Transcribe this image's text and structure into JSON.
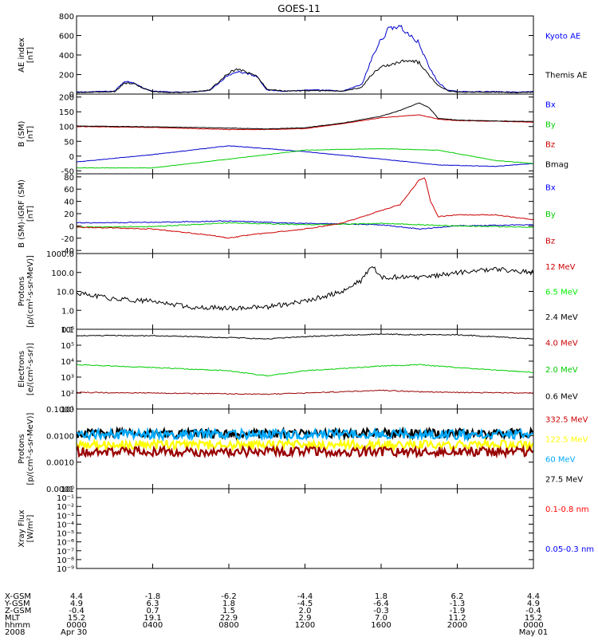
{
  "title": "GOES-11",
  "chart_data": [
    {
      "type": "line",
      "ylabel": [
        "AE index",
        "[nT]"
      ],
      "yticks": [
        "0",
        "200",
        "400",
        "600",
        "800"
      ],
      "tick_values": [
        0,
        200,
        400,
        600,
        800
      ],
      "ylim": [
        0,
        800
      ],
      "legend": [
        {
          "label": "Kyoto AE",
          "color": "#0000ff"
        },
        {
          "label": "Themis AE",
          "color": "#000000"
        }
      ],
      "series": [
        {
          "name": "Kyoto AE",
          "color": "#0000cc",
          "x": [
            0,
            1,
            2,
            2.5,
            3,
            3.5,
            4,
            5,
            6,
            7,
            8,
            8.5,
            9,
            9.5,
            10,
            11,
            12,
            13,
            14,
            15,
            15.5,
            16,
            16.5,
            17,
            17.5,
            18,
            18.5,
            19,
            19.5,
            20,
            21,
            22,
            23,
            24
          ],
          "y": [
            20,
            25,
            30,
            130,
            120,
            60,
            30,
            20,
            20,
            40,
            200,
            230,
            210,
            180,
            40,
            30,
            40,
            40,
            30,
            100,
            360,
            560,
            690,
            690,
            600,
            520,
            280,
            120,
            40,
            25,
            25,
            25,
            20,
            25
          ]
        },
        {
          "name": "Themis AE",
          "color": "#000000",
          "x": [
            0,
            1,
            2,
            2.5,
            3,
            3.5,
            4,
            5,
            6,
            7,
            8,
            8.5,
            9,
            9.5,
            10,
            11,
            12,
            13,
            14,
            15,
            15.5,
            16,
            16.5,
            17,
            17.5,
            18,
            18.5,
            19,
            19.5,
            20,
            21,
            22,
            23,
            24
          ],
          "y": [
            15,
            20,
            25,
            110,
            110,
            60,
            25,
            15,
            20,
            40,
            220,
            260,
            220,
            180,
            50,
            30,
            35,
            35,
            30,
            70,
            200,
            280,
            300,
            330,
            350,
            320,
            200,
            90,
            35,
            20,
            20,
            20,
            15,
            20
          ]
        }
      ]
    },
    {
      "type": "line",
      "ylabel": [
        "B (SM)",
        "[nT]"
      ],
      "yticks": [
        "-50",
        "0",
        "50",
        "100",
        "150",
        "200"
      ],
      "tick_values": [
        -50,
        0,
        50,
        100,
        150,
        200
      ],
      "ylim": [
        -60,
        210
      ],
      "legend": [
        {
          "label": "Bx",
          "color": "#0000ff"
        },
        {
          "label": "By",
          "color": "#00cc00"
        },
        {
          "label": "Bz",
          "color": "#cc0000"
        },
        {
          "label": "Bmag",
          "color": "#000000"
        }
      ],
      "series": [
        {
          "name": "Bx",
          "color": "#0000cc",
          "x": [
            0,
            4,
            8,
            12,
            16,
            19,
            22,
            24
          ],
          "y": [
            -20,
            5,
            35,
            15,
            -10,
            -30,
            -35,
            -25
          ]
        },
        {
          "name": "By",
          "color": "#00cc00",
          "x": [
            0,
            4,
            8,
            12,
            16,
            19,
            22,
            24
          ],
          "y": [
            -40,
            -40,
            -10,
            20,
            25,
            20,
            -15,
            -25
          ]
        },
        {
          "name": "Bz",
          "color": "#cc0000",
          "x": [
            0,
            4,
            8,
            10,
            12,
            14,
            16,
            18,
            19,
            20,
            22,
            24
          ],
          "y": [
            100,
            97,
            90,
            90,
            93,
            110,
            130,
            140,
            125,
            120,
            118,
            115
          ]
        },
        {
          "name": "Bmag",
          "color": "#000000",
          "x": [
            0,
            4,
            8,
            10,
            12,
            14,
            16,
            17,
            18,
            18.5,
            19,
            20,
            22,
            24
          ],
          "y": [
            102,
            99,
            95,
            92,
            96,
            112,
            135,
            155,
            180,
            165,
            128,
            122,
            119,
            117
          ]
        }
      ]
    },
    {
      "type": "line",
      "ylabel": [
        "B (SM)-IGRF (SM)",
        "[nT]"
      ],
      "yticks": [
        "-40",
        "-20",
        "0",
        "20",
        "40",
        "60",
        "80"
      ],
      "tick_values": [
        -40,
        -20,
        0,
        20,
        40,
        60,
        80
      ],
      "ylim": [
        -45,
        85
      ],
      "legend": [
        {
          "label": "Bx",
          "color": "#0000ff"
        },
        {
          "label": "By",
          "color": "#00cc00"
        },
        {
          "label": "Bz",
          "color": "#cc0000"
        }
      ],
      "series": [
        {
          "name": "Bx",
          "color": "#0000cc",
          "x": [
            0,
            4,
            8,
            12,
            16,
            18,
            20,
            24
          ],
          "y": [
            5,
            6,
            8,
            4,
            2,
            -5,
            0,
            2
          ]
        },
        {
          "name": "By",
          "color": "#00cc00",
          "x": [
            0,
            4,
            8,
            12,
            16,
            18,
            20,
            24
          ],
          "y": [
            -2,
            -1,
            5,
            2,
            4,
            2,
            0,
            -2
          ]
        },
        {
          "name": "Bz",
          "color": "#cc0000",
          "x": [
            0,
            4,
            7,
            8,
            9,
            12,
            14,
            15,
            16,
            17,
            17.5,
            18,
            18.3,
            18.6,
            19,
            20,
            22,
            24
          ],
          "y": [
            -2,
            -5,
            -15,
            -20,
            -15,
            -5,
            5,
            15,
            25,
            35,
            55,
            75,
            78,
            40,
            15,
            18,
            18,
            10
          ]
        }
      ]
    },
    {
      "type": "line",
      "ylog": true,
      "ylabel": [
        "Protons",
        "[p/(cm²-s-sr-MeV)]"
      ],
      "yticks": [
        "0.1",
        "1.0",
        "10.0",
        "100.0",
        "1000.0"
      ],
      "tick_values": [
        0.1,
        1,
        10,
        100,
        1000
      ],
      "ylim": [
        0.1,
        1000
      ],
      "legend": [
        {
          "label": "12 MeV",
          "color": "#cc0000"
        },
        {
          "label": "6.5 MeV",
          "color": "#00ee00"
        },
        {
          "label": "2.4 MeV",
          "color": "#000000"
        }
      ],
      "series": [
        {
          "name": "2.4 MeV",
          "color": "#000000",
          "x": [
            0,
            2,
            4,
            6,
            8,
            10,
            12,
            14,
            15,
            15.5,
            16,
            17,
            18,
            20,
            22,
            24
          ],
          "y": [
            8,
            4,
            3,
            1.5,
            1.3,
            1.5,
            3,
            10,
            40,
            250,
            50,
            60,
            50,
            100,
            150,
            100
          ]
        }
      ]
    },
    {
      "type": "line",
      "ylog": true,
      "ylabel": [
        "Electrons",
        "[e/(cm²-s-sr)]"
      ],
      "yticks": [
        "10¹",
        "10²",
        "10³",
        "10⁴",
        "10⁵",
        "10⁶"
      ],
      "tick_values": [
        10,
        100,
        1000,
        10000,
        100000,
        1000000
      ],
      "ylim": [
        10,
        1000000
      ],
      "legend": [
        {
          "label": "4.0 MeV",
          "color": "#cc0000"
        },
        {
          "label": "2.0 MeV",
          "color": "#00cc00"
        },
        {
          "label": "0.6 MeV",
          "color": "#000000"
        }
      ],
      "series": [
        {
          "name": "0.6 MeV",
          "color": "#000000",
          "x": [
            0,
            4,
            8,
            10,
            12,
            16,
            18,
            20,
            24
          ],
          "y": [
            400000,
            400000,
            300000,
            250000,
            350000,
            500000,
            450000,
            450000,
            250000
          ]
        },
        {
          "name": "2.0 MeV",
          "color": "#00cc00",
          "x": [
            0,
            4,
            8,
            10,
            12,
            16,
            18,
            20,
            24
          ],
          "y": [
            6000,
            4000,
            2500,
            1200,
            2500,
            5000,
            6000,
            4000,
            2000
          ]
        },
        {
          "name": "4.0 MeV",
          "color": "#990000",
          "x": [
            0,
            4,
            8,
            10,
            12,
            16,
            18,
            20,
            24
          ],
          "y": [
            110,
            100,
            90,
            85,
            100,
            150,
            120,
            110,
            100
          ]
        }
      ]
    },
    {
      "type": "line",
      "ylog": true,
      "ylabel": [
        "Protons",
        "[p/(cm²-s-sr-MeV)]"
      ],
      "yticks": [
        "0.0001",
        "0.0010",
        "0.0100",
        "0.1000"
      ],
      "tick_values": [
        0.0001,
        0.001,
        0.01,
        0.1
      ],
      "ylim": [
        0.0001,
        0.1
      ],
      "legend": [
        {
          "label": "332.5 MeV",
          "color": "#cc0000"
        },
        {
          "label": "122.5 MeV",
          "color": "#ffff00"
        },
        {
          "label": "60 MeV",
          "color": "#00aaff"
        },
        {
          "label": "27.5 MeV",
          "color": "#000000"
        }
      ],
      "series": [
        {
          "name": "27.5 MeV",
          "color": "#000000",
          "x": [
            0,
            24
          ],
          "y": [
            0.012,
            0.012
          ]
        },
        {
          "name": "60 MeV",
          "color": "#00aaff",
          "x": [
            0,
            24
          ],
          "y": [
            0.011,
            0.011
          ]
        },
        {
          "name": "122.5 MeV",
          "color": "#ffff00",
          "x": [
            0,
            24
          ],
          "y": [
            0.0045,
            0.0045
          ]
        },
        {
          "name": "332.5 MeV",
          "color": "#990000",
          "x": [
            0,
            24
          ],
          "y": [
            0.0025,
            0.0025
          ]
        }
      ]
    },
    {
      "type": "line",
      "ylog": true,
      "ylabel": [
        "Xray Flux",
        "[W/m²]"
      ],
      "yticks": [
        "10⁻⁹",
        "10⁻⁸",
        "10⁻⁷",
        "10⁻⁶",
        "10⁻⁵",
        "10⁻⁴",
        "10⁻³",
        "10⁻²",
        "10⁻¹",
        "10⁰"
      ],
      "tick_values": [
        1e-09,
        1e-08,
        1e-07,
        1e-06,
        1e-05,
        0.0001,
        0.001,
        0.01,
        0.1,
        1
      ],
      "ylim": [
        1e-09,
        1
      ],
      "legend": [
        {
          "label": "0.1-0.8 nm",
          "color": "#ff0000"
        },
        {
          "label": "0.05-0.3 nm",
          "color": "#0000ff"
        }
      ],
      "series": []
    }
  ],
  "x_axis": {
    "xlim": [
      0,
      24
    ],
    "row_labels": [
      "X-GSM",
      "Y-GSM",
      "Z-GSM",
      "MLT",
      "hhmm",
      "2008"
    ],
    "ticks": [
      {
        "x": 0,
        "values": [
          "4.4",
          "4.9",
          "-0.4",
          "15.2",
          "0000",
          "Apr 30"
        ]
      },
      {
        "x": 4,
        "values": [
          "-1.8",
          "6.3",
          "0.7",
          "19.1",
          "0400",
          ""
        ]
      },
      {
        "x": 8,
        "values": [
          "-6.2",
          "1.8",
          "1.5",
          "22.9",
          "0800",
          ""
        ]
      },
      {
        "x": 12,
        "values": [
          "-4.4",
          "-4.5",
          "2.0",
          "2.9",
          "1200",
          ""
        ]
      },
      {
        "x": 16,
        "values": [
          "1.8",
          "-6.4",
          "-0.3",
          "7.0",
          "1600",
          ""
        ]
      },
      {
        "x": 20,
        "values": [
          "6.2",
          "-1.3",
          "-1.9",
          "11.2",
          "2000",
          ""
        ]
      },
      {
        "x": 24,
        "values": [
          "4.4",
          "4.9",
          "-0.4",
          "15.2",
          "0000",
          "May 01"
        ]
      }
    ]
  }
}
